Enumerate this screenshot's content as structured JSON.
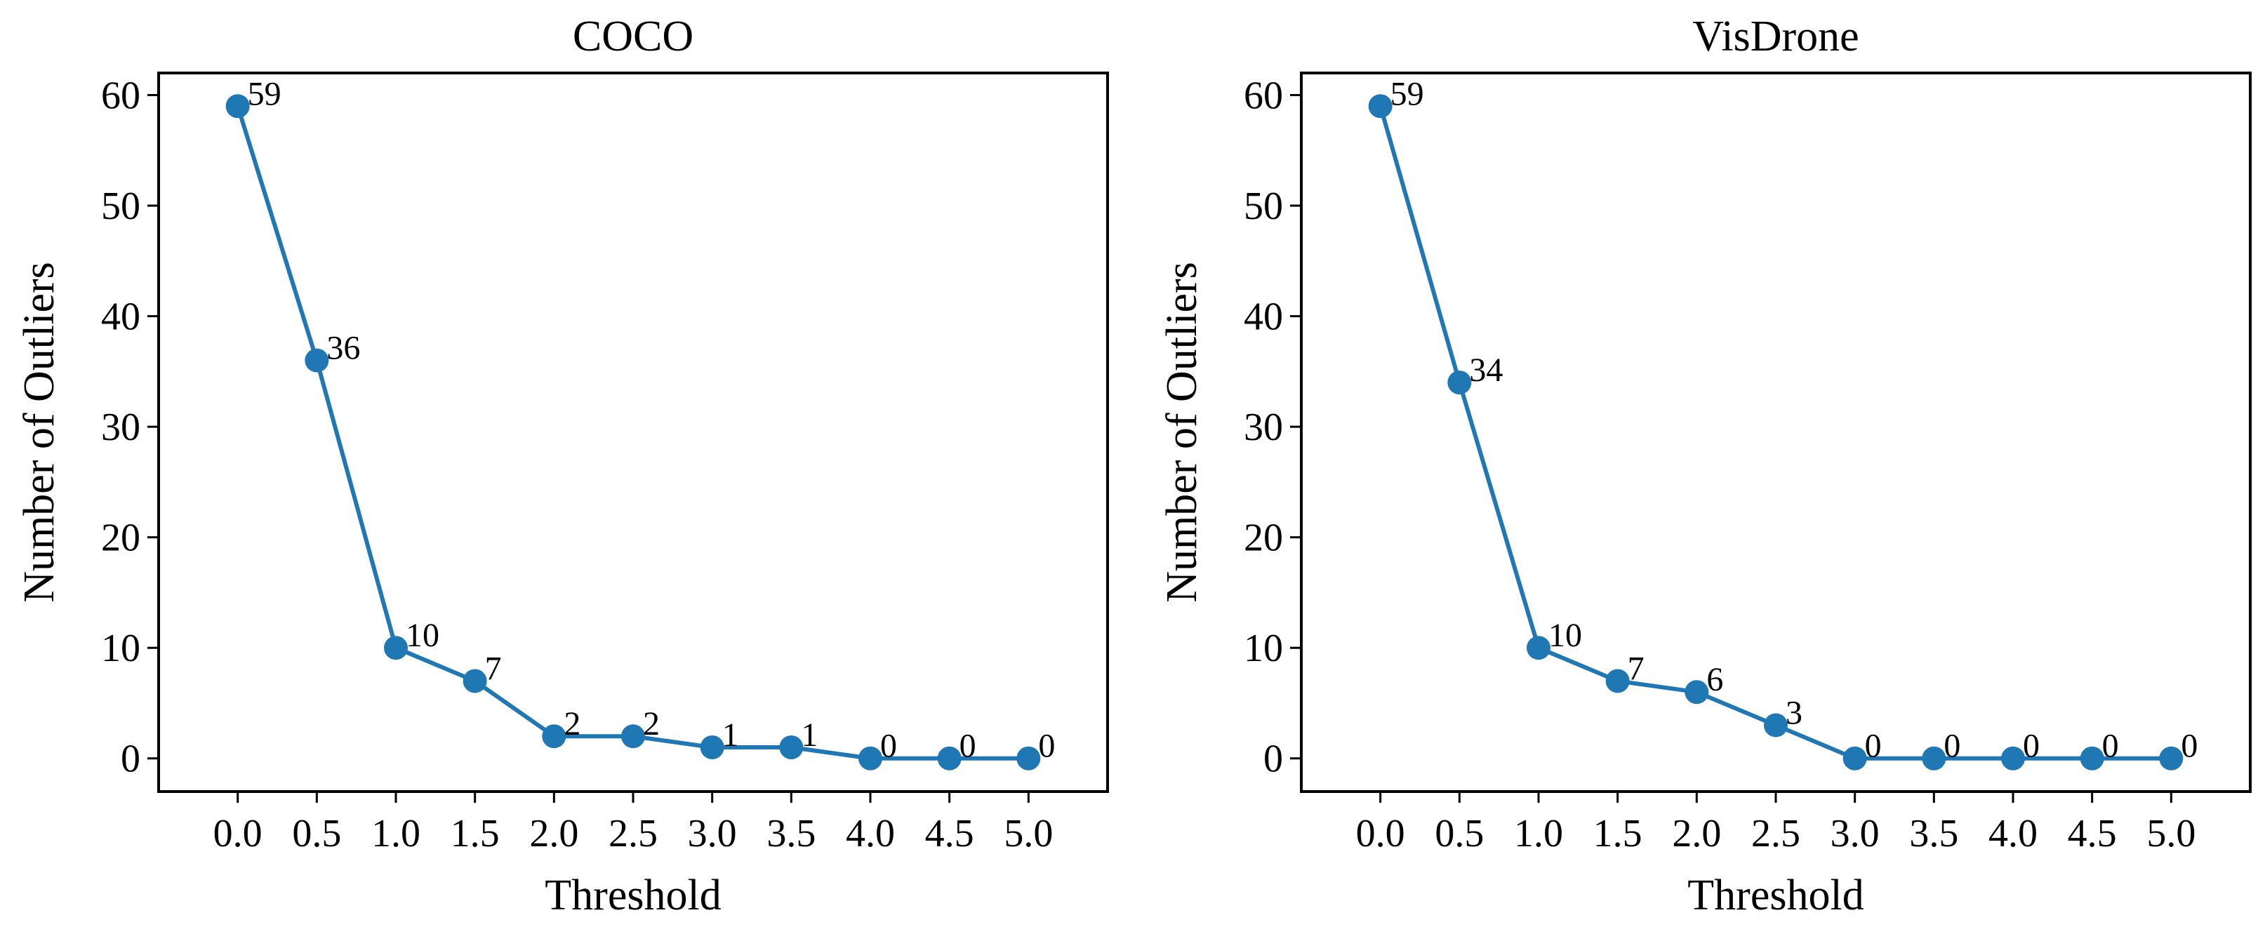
{
  "chart_data": [
    {
      "type": "line",
      "title": "COCO",
      "xlabel": "Threshold",
      "ylabel": "Number of Outliers",
      "x": [
        0.0,
        0.5,
        1.0,
        1.5,
        2.0,
        2.5,
        3.0,
        3.5,
        4.0,
        4.5,
        5.0
      ],
      "x_tick_labels": [
        "0.0",
        "0.5",
        "1.0",
        "1.5",
        "2.0",
        "2.5",
        "3.0",
        "3.5",
        "4.0",
        "4.5",
        "5.0"
      ],
      "y_ticks": [
        0,
        10,
        20,
        30,
        40,
        50,
        60
      ],
      "y_tick_labels": [
        "0",
        "10",
        "20",
        "30",
        "40",
        "50",
        "60"
      ],
      "xlim": [
        -0.5,
        5.5
      ],
      "ylim": [
        -3,
        62
      ],
      "series": [
        {
          "color": "#1f77b4",
          "marker": "circle",
          "values": [
            59,
            36,
            10,
            7,
            2,
            2,
            1,
            1,
            0,
            0,
            0
          ]
        }
      ],
      "data_labels": [
        "59",
        "36",
        "10",
        "7",
        "2",
        "2",
        "1",
        "1",
        "0",
        "0",
        "0"
      ],
      "grid": false,
      "legend": "none"
    },
    {
      "type": "line",
      "title": "VisDrone",
      "xlabel": "Threshold",
      "ylabel": "Number of Outliers",
      "x": [
        0.0,
        0.5,
        1.0,
        1.5,
        2.0,
        2.5,
        3.0,
        3.5,
        4.0,
        4.5,
        5.0
      ],
      "x_tick_labels": [
        "0.0",
        "0.5",
        "1.0",
        "1.5",
        "2.0",
        "2.5",
        "3.0",
        "3.5",
        "4.0",
        "4.5",
        "5.0"
      ],
      "y_ticks": [
        0,
        10,
        20,
        30,
        40,
        50,
        60
      ],
      "y_tick_labels": [
        "0",
        "10",
        "20",
        "30",
        "40",
        "50",
        "60"
      ],
      "xlim": [
        -0.5,
        5.5
      ],
      "ylim": [
        -3,
        62
      ],
      "series": [
        {
          "color": "#1f77b4",
          "marker": "circle",
          "values": [
            59,
            34,
            10,
            7,
            6,
            3,
            0,
            0,
            0,
            0,
            0
          ]
        }
      ],
      "data_labels": [
        "59",
        "34",
        "10",
        "7",
        "6",
        "3",
        "0",
        "0",
        "0",
        "0",
        "0"
      ],
      "grid": false,
      "legend": "none"
    }
  ]
}
